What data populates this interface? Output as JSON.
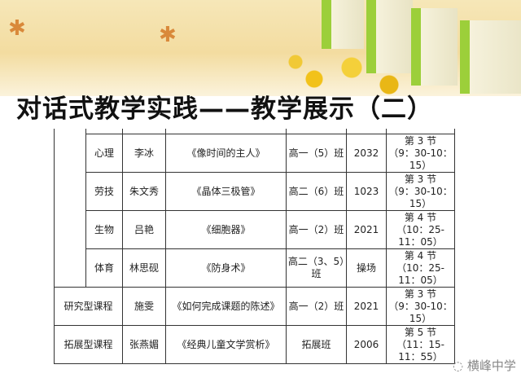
{
  "title": "对话式教学实践——教学展示（二）",
  "rows": [
    {
      "category": "",
      "subject": "心理",
      "teacher": "李冰",
      "lesson": "《像时间的主人》",
      "class": "高一（5）班",
      "room": "2032",
      "time_period": "第 3 节",
      "time_range": "（9：30-10：15）"
    },
    {
      "category": "",
      "subject": "劳技",
      "teacher": "朱文秀",
      "lesson": "《晶体三极管》",
      "class": "高二（6）班",
      "room": "1023",
      "time_period": "第 3 节",
      "time_range": "（9：30-10：15）"
    },
    {
      "category": "",
      "subject": "生物",
      "teacher": "吕艳",
      "lesson": "《细胞器》",
      "class": "高一（2）班",
      "room": "2021",
      "time_period": "第 4 节",
      "time_range": "（10：25-11：05）"
    },
    {
      "category": "",
      "subject": "体育",
      "teacher": "林思砚",
      "lesson": "《防身术》",
      "class": "高二（3、5）班",
      "room": "操场",
      "time_period": "第 4 节",
      "time_range": "（10：25-11：05）"
    },
    {
      "category": "研究型课程",
      "subject": "",
      "teacher": "施雯",
      "lesson": "《如何完成课题的陈述》",
      "class": "高一（2）班",
      "room": "2021",
      "time_period": "第 3 节",
      "time_range": "（9：30-10：15）"
    },
    {
      "category": "拓展型课程",
      "subject": "",
      "teacher": "张燕媚",
      "lesson": "《经典儿童文学赏析》",
      "class": "拓展班",
      "room": "2006",
      "time_period": "第 5 节",
      "time_range": "（11：15-11：55）"
    }
  ],
  "watermark": "横峰中学"
}
